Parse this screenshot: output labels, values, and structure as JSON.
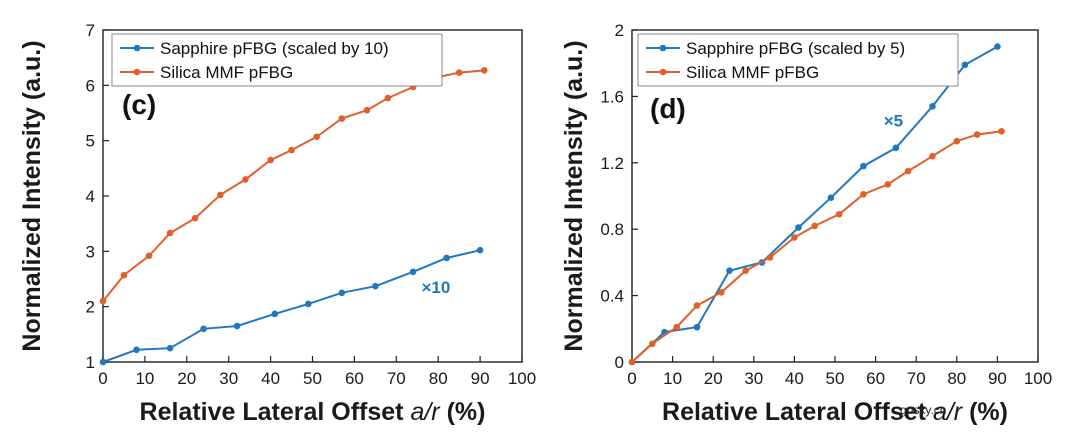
{
  "chart_data": [
    {
      "type": "line",
      "panel_label": "(c)",
      "xlabel_main": "Relative Lateral Offset ",
      "xlabel_var": "a/r",
      "xlabel_unit": " (%)",
      "ylabel": "Normalized Intensity (a.u.)",
      "xlim": [
        0,
        100
      ],
      "ylim": [
        1,
        7
      ],
      "xticks": [
        0,
        10,
        20,
        30,
        40,
        50,
        60,
        70,
        80,
        90,
        100
      ],
      "yticks": [
        1,
        2,
        3,
        4,
        5,
        6,
        7
      ],
      "ytick_labels": [
        "1",
        "2",
        "3",
        "4",
        "5",
        "6",
        "7"
      ],
      "legend_position": "top-left",
      "annotation": {
        "text": "×10",
        "x": 76,
        "y": 2.25,
        "color": "#1f78c0"
      },
      "series": [
        {
          "name": "Sapphire pFBG (scaled by 10)",
          "color": "#1f78c0",
          "x": [
            0,
            8,
            16,
            24,
            32,
            41,
            49,
            57,
            65,
            74,
            82,
            90
          ],
          "y": [
            1.0,
            1.22,
            1.25,
            1.6,
            1.65,
            1.87,
            2.05,
            2.25,
            2.37,
            2.63,
            2.88,
            3.02
          ]
        },
        {
          "name": "Silica MMF pFBG",
          "color": "#e0602a",
          "x": [
            0,
            5,
            11,
            16,
            22,
            28,
            34,
            40,
            45,
            51,
            57,
            63,
            68,
            74,
            80,
            85,
            91
          ],
          "y": [
            2.1,
            2.57,
            2.92,
            3.33,
            3.6,
            4.02,
            4.3,
            4.65,
            4.83,
            5.07,
            5.4,
            5.55,
            5.77,
            5.97,
            6.15,
            6.23,
            6.27
          ]
        }
      ]
    },
    {
      "type": "line",
      "panel_label": "(d)",
      "xlabel_main": "Relative Lateral Offset ",
      "xlabel_var": "a/r",
      "xlabel_unit": " (%)",
      "ylabel": "Normalized Intensity (a.u.)",
      "xlim": [
        0,
        100
      ],
      "ylim": [
        0,
        2
      ],
      "xticks": [
        0,
        10,
        20,
        30,
        40,
        50,
        60,
        70,
        80,
        90,
        100
      ],
      "yticks": [
        0,
        0.4,
        0.8,
        1.2,
        1.6,
        2.0
      ],
      "ytick_labels": [
        "0",
        "0.4",
        "0.8",
        "1.2",
        "1.6",
        "2"
      ],
      "legend_position": "top-left",
      "annotation": {
        "text": "×5",
        "x": 62,
        "y": 1.42,
        "color": "#1f78c0"
      },
      "series": [
        {
          "name": "Sapphire pFBG (scaled by 5)",
          "color": "#1f78c0",
          "x": [
            0,
            8,
            16,
            24,
            32,
            41,
            49,
            57,
            65,
            74,
            82,
            90
          ],
          "y": [
            0.0,
            0.18,
            0.21,
            0.55,
            0.6,
            0.81,
            0.99,
            1.18,
            1.29,
            1.54,
            1.79,
            1.9
          ]
        },
        {
          "name": "Silica MMF pFBG",
          "color": "#e0602a",
          "x": [
            0,
            5,
            11,
            16,
            22,
            28,
            34,
            40,
            45,
            51,
            57,
            63,
            68,
            74,
            80,
            85,
            91
          ],
          "y": [
            0.0,
            0.11,
            0.21,
            0.34,
            0.42,
            0.55,
            0.63,
            0.75,
            0.82,
            0.89,
            1.01,
            1.07,
            1.15,
            1.24,
            1.33,
            1.37,
            1.39
          ]
        }
      ]
    }
  ],
  "watermark": "gpsxy.cn"
}
